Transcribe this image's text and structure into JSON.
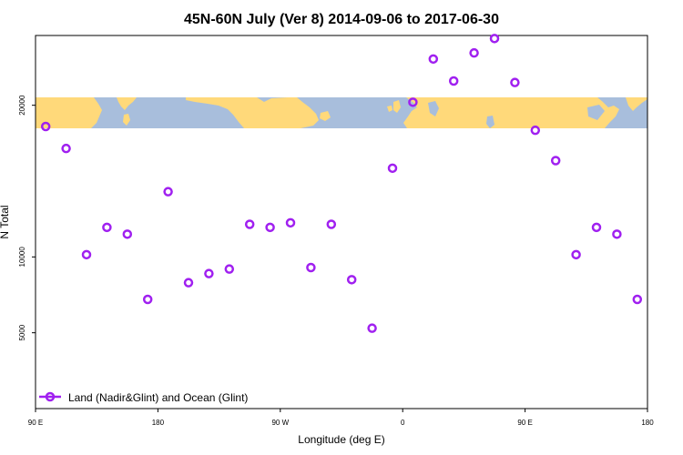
{
  "chart_data": {
    "type": "scatter",
    "title": "45N-60N July (Ver 8)   2014-09-06 to 2017-06-30",
    "xlabel": "Longitude (deg E)",
    "ylabel": "N Total",
    "x_ticks": [
      {
        "value": 90,
        "label": "90 E"
      },
      {
        "value": 180,
        "label": "180"
      },
      {
        "value": 270,
        "label": "90 W"
      },
      {
        "value": 360,
        "label": "0"
      },
      {
        "value": 450,
        "label": "90 E"
      },
      {
        "value": 540,
        "label": "180"
      }
    ],
    "y_ticks": [
      5000,
      10000,
      20000
    ],
    "xlim": [
      90,
      540
    ],
    "ylim": [
      0,
      24600
    ],
    "y_scale": "linear",
    "grid": false,
    "legend_position": "bottom-left",
    "map_band": {
      "lat_range": "45N-60N",
      "y_range": [
        19400,
        21100
      ],
      "land_color": "#ffd97a",
      "ocean_color": "#a8bedc"
    },
    "series": [
      {
        "name": "Land (Nadir&Glint) and Ocean (Glint)",
        "color": "#a020f0",
        "marker": "open-circle",
        "x": [
          97.5,
          112.5,
          127.5,
          142.5,
          157.5,
          172.5,
          187.5,
          202.5,
          217.5,
          232.5,
          247.5,
          262.5,
          277.5,
          292.5,
          307.5,
          322.5,
          337.5,
          352.5,
          367.5,
          382.5,
          397.5,
          412.5,
          427.5,
          442.5,
          457.5,
          472.5,
          487.5,
          502.5,
          517.5,
          532.5
        ],
        "y": [
          18600,
          17150,
          10150,
          11950,
          11500,
          7200,
          14300,
          8300,
          8900,
          9200,
          12150,
          11950,
          12250,
          9300,
          12150,
          8500,
          5300,
          15850,
          20200,
          23050,
          21600,
          23450,
          24400,
          21500,
          18350,
          16350,
          10150,
          11950,
          11500,
          7200
        ]
      }
    ]
  }
}
